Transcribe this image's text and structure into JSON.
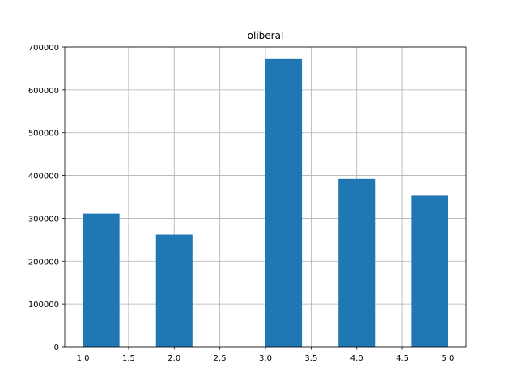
{
  "chart_data": {
    "type": "bar",
    "title": "oliberal",
    "xlabel": "",
    "ylabel": "",
    "bins": [
      {
        "x0": 1.0,
        "x1": 1.4,
        "value": 311000
      },
      {
        "x0": 1.4,
        "x1": 1.8,
        "value": 0
      },
      {
        "x0": 1.8,
        "x1": 2.2,
        "value": 262000
      },
      {
        "x0": 2.2,
        "x1": 2.6,
        "value": 0
      },
      {
        "x0": 2.6,
        "x1": 3.0,
        "value": 0
      },
      {
        "x0": 3.0,
        "x1": 3.4,
        "value": 672000
      },
      {
        "x0": 3.4,
        "x1": 3.8,
        "value": 0
      },
      {
        "x0": 3.8,
        "x1": 4.2,
        "value": 392000
      },
      {
        "x0": 4.2,
        "x1": 4.6,
        "value": 0
      },
      {
        "x0": 4.6,
        "x1": 5.0,
        "value": 353000
      }
    ],
    "xlim": [
      0.8,
      5.2
    ],
    "ylim": [
      0,
      700000
    ],
    "xticks": [
      "1.0",
      "1.5",
      "2.0",
      "2.5",
      "3.0",
      "3.5",
      "4.0",
      "4.5",
      "5.0"
    ],
    "yticks": [
      "0",
      "100000",
      "200000",
      "300000",
      "400000",
      "500000",
      "600000",
      "700000"
    ],
    "grid": true,
    "bar_color": "#1f77b4",
    "grid_color": "#b0b0b0"
  }
}
